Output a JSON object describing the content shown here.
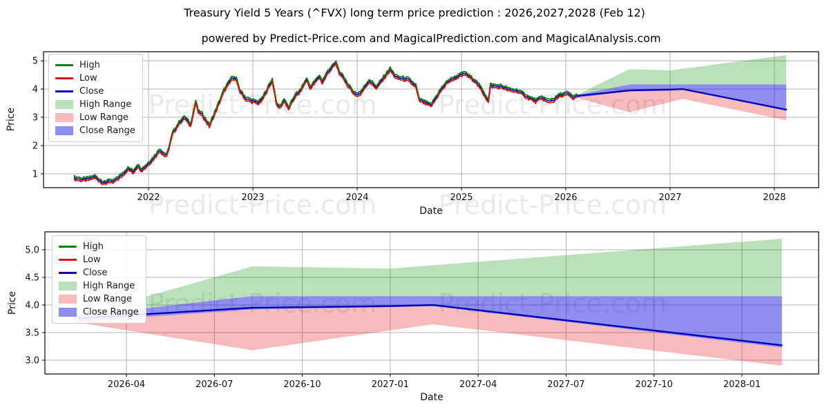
{
  "title": "Treasury Yield 5 Years (^FVX) long term price prediction : 2026,2027,2028 (Feb 12)",
  "subtitle": "powered by Predict-Price.com and MagicalPrediction.com and MagicalAnalysis.com",
  "watermark": "Predict-Price.com",
  "colors": {
    "high_line": "#0a800a",
    "low_line": "#dd1111",
    "close_line": "#0000b8",
    "high_range_fill": "rgba(0,140,0,0.27)",
    "low_range_fill": "rgba(225,30,25,0.30)",
    "close_range_fill": "rgba(30,30,225,0.50)",
    "grid": "#b3b3b3",
    "spine": "#000000",
    "watermark_color": "#8f8f8f"
  },
  "legend": [
    {
      "label": "High",
      "type": "line",
      "color_key": "high_line"
    },
    {
      "label": "Low",
      "type": "line",
      "color_key": "low_line"
    },
    {
      "label": "Close",
      "type": "line",
      "color_key": "close_line"
    },
    {
      "label": "High Range",
      "type": "patch",
      "color_key": "high_range_fill"
    },
    {
      "label": "Low Range",
      "type": "patch",
      "color_key": "low_range_fill"
    },
    {
      "label": "Close Range",
      "type": "patch",
      "color_key": "close_range_fill"
    }
  ],
  "prediction": {
    "dates": [
      "2026-02-12",
      "2026-08-10",
      "2027-01-01",
      "2027-02-15",
      "2028-02-12"
    ],
    "close": [
      3.76,
      3.95,
      3.98,
      4.0,
      3.27
    ],
    "close_range_high": [
      3.8,
      4.16,
      4.16,
      4.16,
      4.16
    ],
    "close_range_low": [
      3.7,
      3.92,
      3.96,
      3.98,
      3.23
    ],
    "high_range_top": [
      3.8,
      4.7,
      4.66,
      4.72,
      5.2
    ],
    "low_range_bottom": [
      3.68,
      3.18,
      3.54,
      3.65,
      2.9
    ]
  },
  "chart_data": [
    {
      "type": "line",
      "position": "top",
      "xlabel": "Date",
      "ylabel": "Price",
      "xticks": [
        "2022",
        "2023",
        "2024",
        "2025",
        "2026",
        "2027",
        "2028"
      ],
      "yticks": [
        "1",
        "2",
        "3",
        "4",
        "5"
      ],
      "ylim": [
        0.51,
        5.32
      ],
      "grid": true,
      "legend_position": "upper left",
      "history": {
        "dates": [
          "2021-04-15",
          "2021-05-10",
          "2021-06-05",
          "2021-06-25",
          "2021-07-20",
          "2021-08-03",
          "2021-08-12",
          "2021-08-25",
          "2021-09-10",
          "2021-09-28",
          "2021-10-20",
          "2021-11-08",
          "2021-11-24",
          "2021-12-06",
          "2021-12-20",
          "2022-01-18",
          "2022-02-10",
          "2022-02-24",
          "2022-03-04",
          "2022-03-25",
          "2022-04-20",
          "2022-05-06",
          "2022-05-26",
          "2022-06-14",
          "2022-06-23",
          "2022-07-06",
          "2022-08-01",
          "2022-08-22",
          "2022-09-22",
          "2022-10-21",
          "2022-11-04",
          "2022-11-16",
          "2022-12-07",
          "2023-01-19",
          "2023-02-02",
          "2023-03-08",
          "2023-03-17",
          "2023-03-24",
          "2023-04-06",
          "2023-04-20",
          "2023-05-04",
          "2023-05-26",
          "2023-06-14",
          "2023-07-07",
          "2023-07-19",
          "2023-08-21",
          "2023-09-01",
          "2023-09-21",
          "2023-10-18",
          "2023-11-03",
          "2023-11-14",
          "2023-12-01",
          "2023-12-27",
          "2024-01-12",
          "2024-02-13",
          "2024-03-08",
          "2024-04-25",
          "2024-05-15",
          "2024-06-28",
          "2024-07-24",
          "2024-08-05",
          "2024-09-16",
          "2024-10-21",
          "2024-11-15",
          "2024-12-19",
          "2025-01-13",
          "2025-02-20",
          "2025-03-11",
          "2025-04-04",
          "2025-04-11",
          "2025-05-21",
          "2025-06-20",
          "2025-07-15",
          "2025-08-20",
          "2025-09-17",
          "2025-10-10",
          "2025-10-28",
          "2025-11-20",
          "2025-12-11",
          "2026-01-08",
          "2026-01-26",
          "2026-02-12"
        ],
        "close": [
          0.85,
          0.8,
          0.82,
          0.9,
          0.72,
          0.66,
          0.78,
          0.7,
          0.8,
          0.95,
          1.18,
          1.08,
          1.3,
          1.15,
          1.25,
          1.55,
          1.85,
          1.7,
          1.65,
          2.45,
          2.85,
          3.0,
          2.72,
          3.55,
          3.2,
          3.1,
          2.7,
          3.2,
          3.95,
          4.42,
          4.33,
          3.95,
          3.65,
          3.52,
          3.62,
          4.32,
          3.85,
          3.42,
          3.38,
          3.62,
          3.3,
          3.75,
          3.92,
          4.35,
          4.05,
          4.45,
          4.25,
          4.62,
          4.93,
          4.5,
          4.42,
          4.1,
          3.8,
          3.85,
          4.3,
          4.06,
          4.7,
          4.42,
          4.33,
          4.1,
          3.62,
          3.42,
          3.98,
          4.28,
          4.45,
          4.56,
          4.28,
          3.98,
          3.58,
          4.12,
          4.08,
          3.96,
          3.94,
          3.72,
          3.58,
          3.7,
          3.57,
          3.62,
          3.78,
          3.84,
          3.7,
          3.76
        ],
        "high_low_spread": 0.09
      }
    },
    {
      "type": "line",
      "position": "bottom",
      "xlabel": "Date",
      "ylabel": "Price",
      "xticks": [
        "2026-04",
        "2026-07",
        "2026-10",
        "2027-01",
        "2027-04",
        "2027-07",
        "2027-10",
        "2028-01"
      ],
      "yticks": [
        "3.0",
        "3.5",
        "4.0",
        "4.5",
        "5.0"
      ],
      "ylim": [
        2.75,
        5.33
      ],
      "grid": true,
      "legend_position": "upper left"
    }
  ]
}
